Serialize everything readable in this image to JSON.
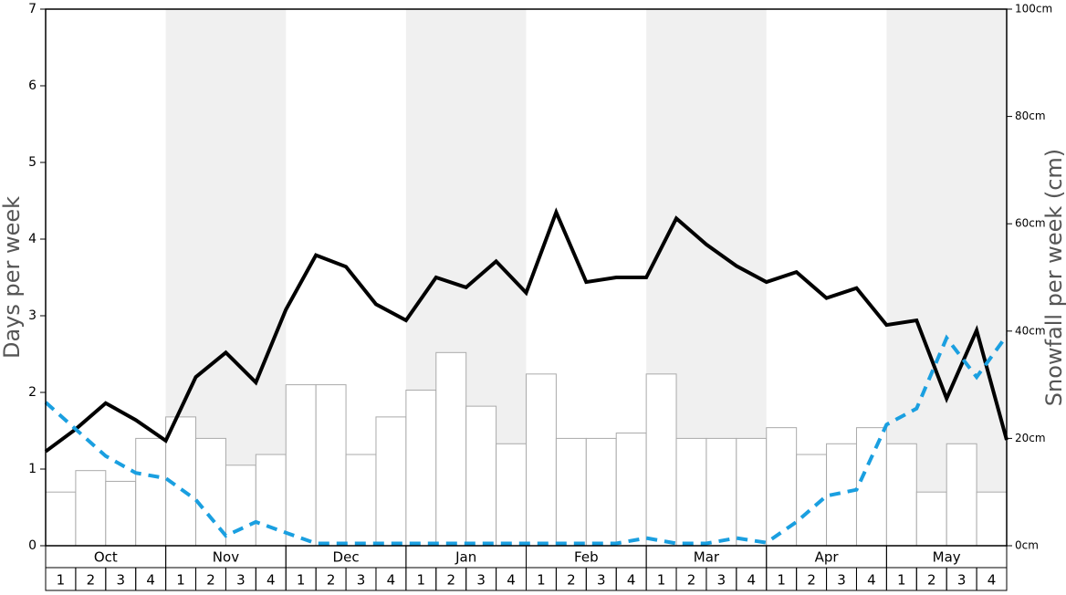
{
  "chart_data": {
    "type": "combo",
    "months": [
      "Oct",
      "Nov",
      "Dec",
      "Jan",
      "Feb",
      "Mar",
      "Apr",
      "May"
    ],
    "categories": [
      "1",
      "2",
      "3",
      "4",
      "1",
      "2",
      "3",
      "4",
      "1",
      "2",
      "3",
      "4",
      "1",
      "2",
      "3",
      "4",
      "1",
      "2",
      "3",
      "4",
      "1",
      "2",
      "3",
      "4",
      "1",
      "2",
      "3",
      "4",
      "1",
      "2",
      "3",
      "4"
    ],
    "band_color": "#f0f0f0",
    "y_label": "Days per week",
    "y2_label": "Snowfall per week (cm)",
    "ylim": [
      0,
      7
    ],
    "yticks": [
      0,
      1,
      2,
      3,
      4,
      5,
      6,
      7
    ],
    "y2lim": [
      0,
      100
    ],
    "y2ticks": [
      {
        "value": 0,
        "label": "0cm"
      },
      {
        "value": 20,
        "label": "20cm"
      },
      {
        "value": 40,
        "label": "40cm"
      },
      {
        "value": 60,
        "label": "60cm"
      },
      {
        "value": 80,
        "label": "80cm"
      },
      {
        "value": 100,
        "label": "100cm"
      }
    ],
    "xlim": [
      0,
      32
    ],
    "series": [
      {
        "type": "bar",
        "axis": "y2",
        "color": "#ffffff",
        "edge": "#aaaaaa",
        "values": [
          10,
          14,
          12,
          20,
          24,
          20,
          15,
          17,
          30,
          30,
          17,
          24,
          29,
          36,
          26,
          19,
          32,
          20,
          20,
          21,
          32,
          20,
          20,
          20,
          22,
          17,
          19,
          22,
          19,
          10,
          19,
          10
        ]
      },
      {
        "type": "line",
        "color": "#000000",
        "dash": false,
        "x": [
          0,
          1,
          2,
          3,
          4,
          5,
          6,
          7,
          8,
          9,
          10,
          11,
          12,
          13,
          14,
          15,
          16,
          17,
          18,
          19,
          20,
          21,
          22,
          23,
          24,
          25,
          26,
          27,
          28,
          29,
          30,
          31,
          32
        ],
        "values": [
          1.23,
          1.52,
          1.86,
          1.64,
          1.37,
          2.2,
          2.52,
          2.13,
          3.08,
          3.79,
          3.64,
          3.15,
          2.94,
          3.5,
          3.37,
          3.71,
          3.3,
          4.35,
          3.44,
          3.5,
          3.5,
          4.27,
          3.93,
          3.65,
          3.44,
          3.57,
          3.23,
          3.36,
          2.88,
          2.94,
          1.92,
          2.81,
          1.38
        ]
      },
      {
        "type": "line",
        "color": "#1a9fe0",
        "dash": true,
        "x": [
          0,
          1,
          2,
          3,
          4,
          5,
          6,
          7,
          8,
          9,
          10,
          11,
          12,
          13,
          14,
          15,
          16,
          17,
          18,
          19,
          20,
          21,
          22,
          23,
          24,
          25,
          26,
          27,
          28,
          29,
          30,
          31,
          32
        ],
        "values": [
          1.87,
          1.52,
          1.17,
          0.95,
          0.88,
          0.6,
          0.13,
          0.31,
          0.17,
          0.03,
          0.03,
          0.03,
          0.03,
          0.03,
          0.03,
          0.03,
          0.03,
          0.03,
          0.03,
          0.03,
          0.1,
          0.03,
          0.03,
          0.1,
          0.04,
          0.31,
          0.65,
          0.73,
          1.58,
          1.79,
          2.71,
          2.2,
          2.74
        ]
      }
    ]
  }
}
